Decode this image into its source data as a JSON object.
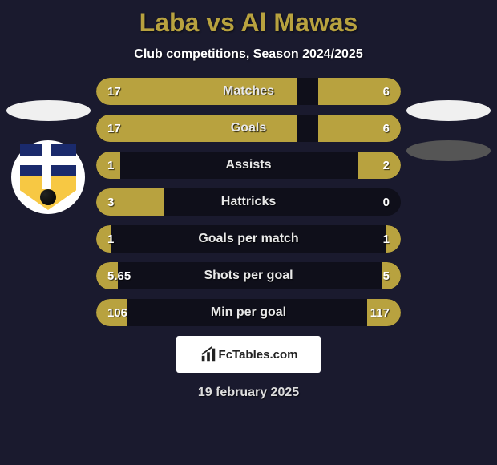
{
  "title": "Laba vs Al Mawas",
  "subtitle": "Club competitions, Season 2024/2025",
  "bar_color": "#b8a23f",
  "rows": [
    {
      "label": "Matches",
      "left": "17",
      "right": "6",
      "lw": 66,
      "rw": 27
    },
    {
      "label": "Goals",
      "left": "17",
      "right": "6",
      "lw": 66,
      "rw": 27
    },
    {
      "label": "Assists",
      "left": "1",
      "right": "2",
      "lw": 8,
      "rw": 14
    },
    {
      "label": "Hattricks",
      "left": "3",
      "right": "0",
      "lw": 22,
      "rw": 0
    },
    {
      "label": "Goals per match",
      "left": "1",
      "right": "1",
      "lw": 5,
      "rw": 5
    },
    {
      "label": "Shots per goal",
      "left": "5.65",
      "right": "5",
      "lw": 7,
      "rw": 6
    },
    {
      "label": "Min per goal",
      "left": "106",
      "right": "117",
      "lw": 10,
      "rw": 11
    }
  ],
  "logo_text": "FcTables.com",
  "date_text": "19 february 2025"
}
